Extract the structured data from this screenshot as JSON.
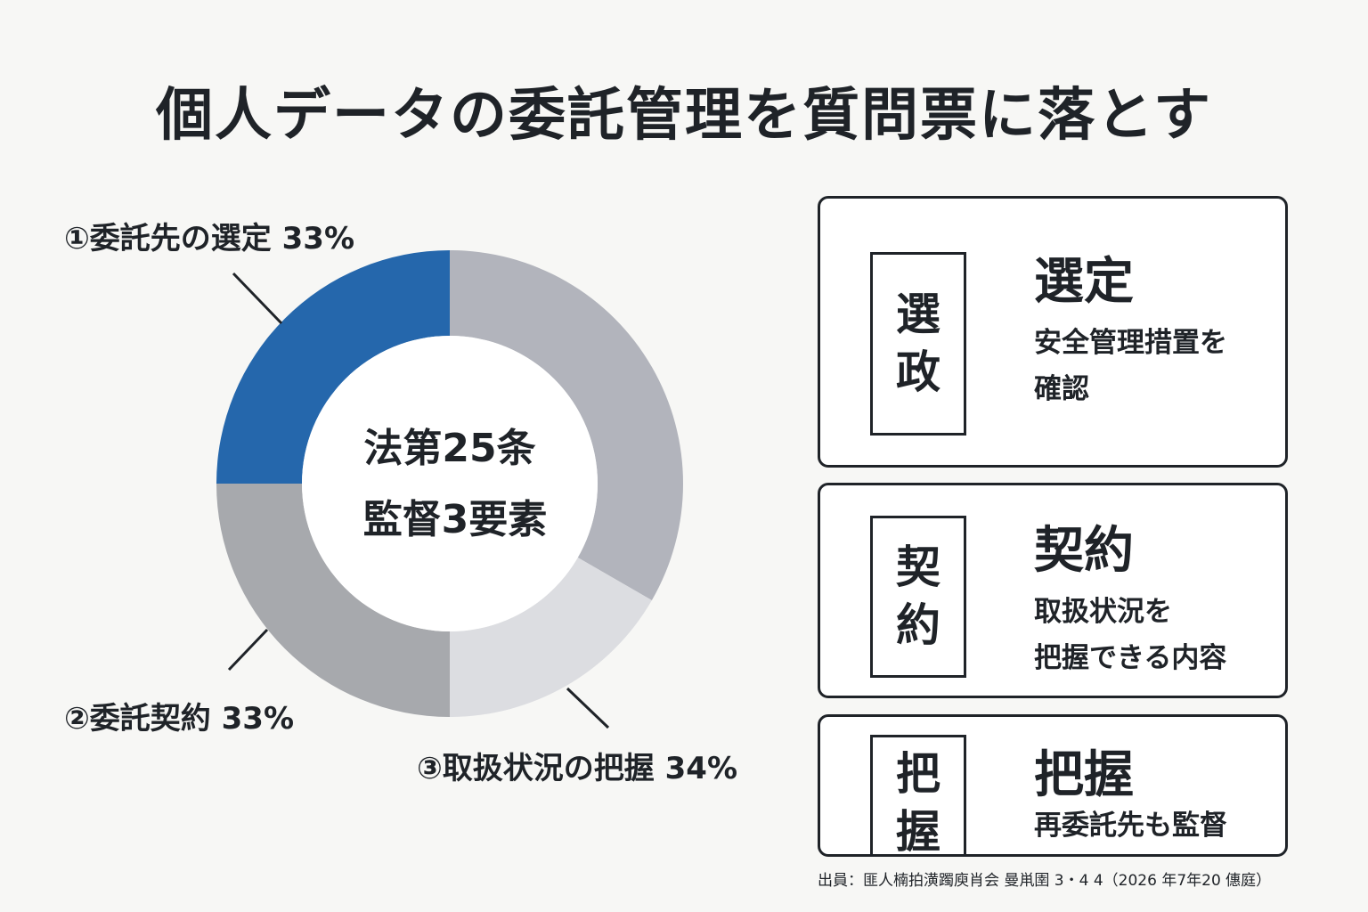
{
  "title": "個人データの委託管理を質問票に落とす",
  "chart_data": {
    "type": "pie",
    "style": "donut",
    "center_label": [
      "法第25条",
      "監督3要素"
    ],
    "slices": [
      {
        "label": "①委託先の選定 33%",
        "value": 33,
        "color": "#2567ac"
      },
      {
        "label": "②委託契約 33%",
        "value": 33,
        "color": "#a7a9ad"
      },
      {
        "label": "③取扱状況の把握 34%",
        "value": 34,
        "color": "#dcdde1"
      }
    ],
    "segment_colors": [
      "#2567ac",
      "#b2b4bc",
      "#dcdde1",
      "#a7a9ad"
    ]
  },
  "cards": [
    {
      "stamp": [
        "選",
        "政"
      ],
      "heading": "選定",
      "body": [
        "安全管理措置を",
        "確認"
      ]
    },
    {
      "stamp": [
        "契",
        "約"
      ],
      "heading": "契約",
      "body": [
        "取扱状況を",
        "把握できる内容"
      ]
    },
    {
      "stamp": [
        "把",
        "握"
      ],
      "heading": "把握",
      "body": [
        "再委託先も監督"
      ]
    }
  ],
  "source": "出員：匪人楠拍潢躅庾肖会 曼鼡圉 3・4 4（2026 年7年20 僡庭）"
}
